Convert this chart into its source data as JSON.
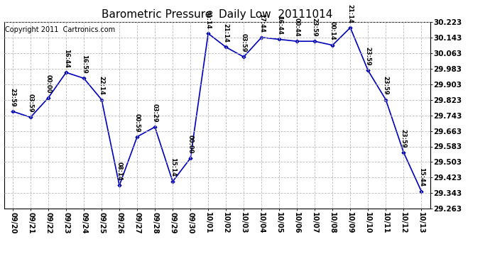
{
  "title": "Barometric Pressure  Daily Low  20111014",
  "copyright": "Copyright 2011  Cartronics.com",
  "x_labels": [
    "09/20",
    "09/21",
    "09/22",
    "09/23",
    "09/24",
    "09/25",
    "09/26",
    "09/27",
    "09/28",
    "09/29",
    "09/30",
    "10/01",
    "10/02",
    "10/03",
    "10/04",
    "10/05",
    "10/06",
    "10/07",
    "10/08",
    "10/09",
    "10/10",
    "10/11",
    "10/12",
    "10/13"
  ],
  "y_values": [
    29.763,
    29.733,
    29.833,
    29.963,
    29.933,
    29.823,
    29.383,
    29.633,
    29.683,
    29.403,
    29.523,
    30.163,
    30.093,
    30.043,
    30.143,
    30.133,
    30.123,
    30.123,
    30.103,
    30.193,
    29.973,
    29.823,
    29.553,
    29.353
  ],
  "annotations": [
    "23:59",
    "03:59",
    "00:00",
    "16:44",
    "16:59",
    "22:14",
    "08:14",
    "00:59",
    "03:29",
    "15:14",
    "00:00",
    "01:14",
    "21:14",
    "03:59",
    "17:44",
    "16:44",
    "00:44",
    "23:59",
    "00:14",
    "21:14",
    "23:59",
    "23:59",
    "23:59",
    "15:44"
  ],
  "y_min": 29.263,
  "y_max": 30.223,
  "y_ticks": [
    29.263,
    29.343,
    29.423,
    29.503,
    29.583,
    29.663,
    29.743,
    29.823,
    29.903,
    29.983,
    30.063,
    30.143,
    30.223
  ],
  "line_color": "#0000bb",
  "marker_color": "#0000bb",
  "bg_color": "#ffffff",
  "grid_color": "#bbbbbb",
  "title_fontsize": 11,
  "annotation_fontsize": 6.0,
  "copyright_fontsize": 7,
  "xlabel_fontsize": 7,
  "ylabel_fontsize": 7.5
}
